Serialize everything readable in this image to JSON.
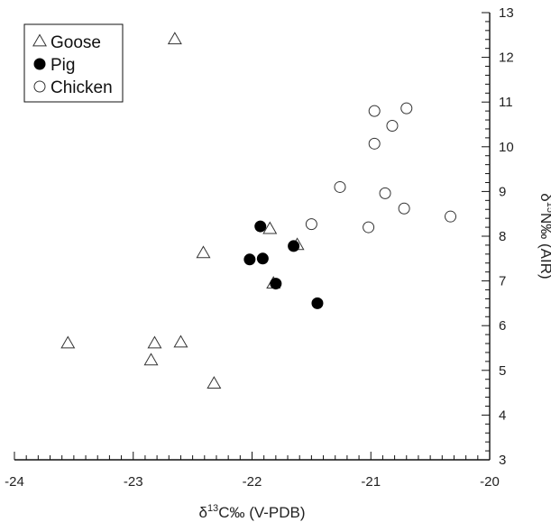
{
  "chart_data": {
    "type": "scatter",
    "title": "",
    "xlabel": {
      "prefix": "δ",
      "sup": "13",
      "rest": "C‰ (V-PDB)"
    },
    "ylabel": {
      "prefix": "δ",
      "sup": "15",
      "rest": "N‰ (AIR)"
    },
    "xlim": [
      -24,
      -20
    ],
    "ylim": [
      3,
      13
    ],
    "x_ticks": [
      -24,
      -23,
      -22,
      -21,
      -20
    ],
    "x_tick_labels": [
      "-24",
      "-23",
      "-22",
      "-21",
      "-20"
    ],
    "y_ticks": [
      3,
      4,
      5,
      6,
      7,
      8,
      9,
      10,
      11,
      12,
      13
    ],
    "y_tick_labels": [
      "3",
      "4",
      "5",
      "6",
      "7",
      "8",
      "9",
      "10",
      "11",
      "12",
      "13"
    ],
    "grid": false,
    "legend_position": "top-left",
    "series": [
      {
        "name": "Goose",
        "marker": "open-triangle",
        "points": [
          [
            -22.65,
            12.4
          ],
          [
            -23.55,
            5.6
          ],
          [
            -22.82,
            5.6
          ],
          [
            -22.85,
            5.22
          ],
          [
            -22.6,
            5.62
          ],
          [
            -22.32,
            4.7
          ],
          [
            -22.41,
            7.62
          ],
          [
            -21.85,
            8.16
          ],
          [
            -21.62,
            7.8
          ],
          [
            -21.82,
            6.94
          ]
        ]
      },
      {
        "name": "Pig",
        "marker": "filled-circle",
        "points": [
          [
            -21.93,
            8.22
          ],
          [
            -22.02,
            7.48
          ],
          [
            -21.91,
            7.5
          ],
          [
            -21.65,
            7.78
          ],
          [
            -21.8,
            6.94
          ],
          [
            -21.45,
            6.5
          ]
        ]
      },
      {
        "name": "Chicken",
        "marker": "open-circle",
        "points": [
          [
            -20.97,
            10.8
          ],
          [
            -20.7,
            10.86
          ],
          [
            -20.82,
            10.47
          ],
          [
            -20.97,
            10.07
          ],
          [
            -21.26,
            9.1
          ],
          [
            -20.88,
            8.96
          ],
          [
            -20.72,
            8.62
          ],
          [
            -20.33,
            8.44
          ],
          [
            -21.5,
            8.27
          ],
          [
            -21.02,
            8.2
          ]
        ]
      }
    ]
  }
}
